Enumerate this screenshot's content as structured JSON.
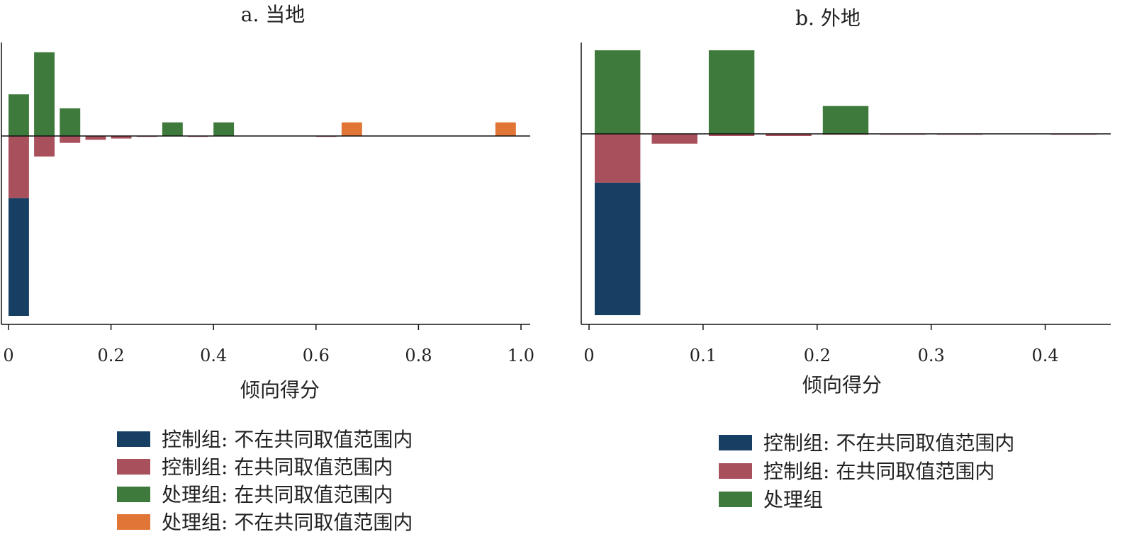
{
  "chart_data": [
    {
      "type": "bar",
      "subtype": "mirrored-histogram",
      "title": "a. 当地",
      "xlabel": "倾向得分",
      "xlim": [
        0,
        1.0
      ],
      "xticks": [
        0,
        0.2,
        0.4,
        0.6,
        0.8,
        1.0
      ],
      "xtick_labels": [
        "0",
        "0.2",
        "0.4",
        "0.6",
        "0.8",
        "1.0"
      ],
      "ylim": [
        -0.42,
        0.2
      ],
      "bin_width": 0.04,
      "series": [
        {
          "name": "控制组: 不在共同取值范围内",
          "color": "#173f63",
          "bars": [
            {
              "x": 0.02,
              "y0": -0.145,
              "y1": -0.42
            }
          ]
        },
        {
          "name": "控制组: 在共同取值范围内",
          "color": "#a8505c",
          "bars": [
            {
              "x": 0.02,
              "y0": 0,
              "y1": -0.145
            },
            {
              "x": 0.07,
              "y0": 0,
              "y1": -0.048
            },
            {
              "x": 0.12,
              "y0": 0,
              "y1": -0.016
            },
            {
              "x": 0.17,
              "y0": 0,
              "y1": -0.009
            },
            {
              "x": 0.22,
              "y0": 0,
              "y1": -0.006
            },
            {
              "x": 0.27,
              "y0": 0,
              "y1": -0.002
            },
            {
              "x": 0.37,
              "y0": 0,
              "y1": -0.002
            },
            {
              "x": 0.62,
              "y0": 0,
              "y1": -0.002
            }
          ]
        },
        {
          "name": "处理组: 在共同取值范围内",
          "color": "#3d7a3b",
          "bars": [
            {
              "x": 0.02,
              "y0": 0,
              "y1": 0.098
            },
            {
              "x": 0.07,
              "y0": 0,
              "y1": 0.197
            },
            {
              "x": 0.12,
              "y0": 0,
              "y1": 0.065
            },
            {
              "x": 0.32,
              "y0": 0,
              "y1": 0.032
            },
            {
              "x": 0.42,
              "y0": 0,
              "y1": 0.032
            }
          ]
        },
        {
          "name": "处理组: 不在共同取值范围内",
          "color": "#e07535",
          "bars": [
            {
              "x": 0.67,
              "y0": 0,
              "y1": 0.032
            },
            {
              "x": 0.97,
              "y0": 0,
              "y1": 0.032
            }
          ]
        }
      ],
      "legend": "bottom"
    },
    {
      "type": "bar",
      "subtype": "mirrored-histogram",
      "title": "b. 外地",
      "xlabel": "倾向得分",
      "xlim": [
        0,
        0.45
      ],
      "xticks": [
        0,
        0.1,
        0.2,
        0.3,
        0.4
      ],
      "xtick_labels": [
        "0",
        "0.1",
        "0.2",
        "0.3",
        "0.4"
      ],
      "ylim": [
        -0.52,
        0.3
      ],
      "bin_width": 0.04,
      "series": [
        {
          "name": "控制组: 不在共同取值范围内",
          "color": "#173f63",
          "bars": [
            {
              "x": 0.025,
              "y0": -0.14,
              "y1": -0.52
            }
          ]
        },
        {
          "name": "控制组: 在共同取值范围内",
          "color": "#a8505c",
          "bars": [
            {
              "x": 0.025,
              "y0": 0,
              "y1": -0.14
            },
            {
              "x": 0.075,
              "y0": 0,
              "y1": -0.028
            },
            {
              "x": 0.125,
              "y0": 0,
              "y1": -0.006
            },
            {
              "x": 0.175,
              "y0": 0,
              "y1": -0.006
            },
            {
              "x": 0.225,
              "y0": 0,
              "y1": -0.002
            },
            {
              "x": 0.275,
              "y0": 0,
              "y1": -0.002
            },
            {
              "x": 0.325,
              "y0": 0,
              "y1": -0.002
            },
            {
              "x": 0.425,
              "y0": 0,
              "y1": -0.002
            }
          ]
        },
        {
          "name": "处理组",
          "color": "#3d7a3b",
          "bars": [
            {
              "x": 0.025,
              "y0": 0,
              "y1": 0.3
            },
            {
              "x": 0.125,
              "y0": 0,
              "y1": 0.3
            },
            {
              "x": 0.225,
              "y0": 0,
              "y1": 0.1
            }
          ]
        }
      ],
      "legend": "bottom"
    }
  ]
}
